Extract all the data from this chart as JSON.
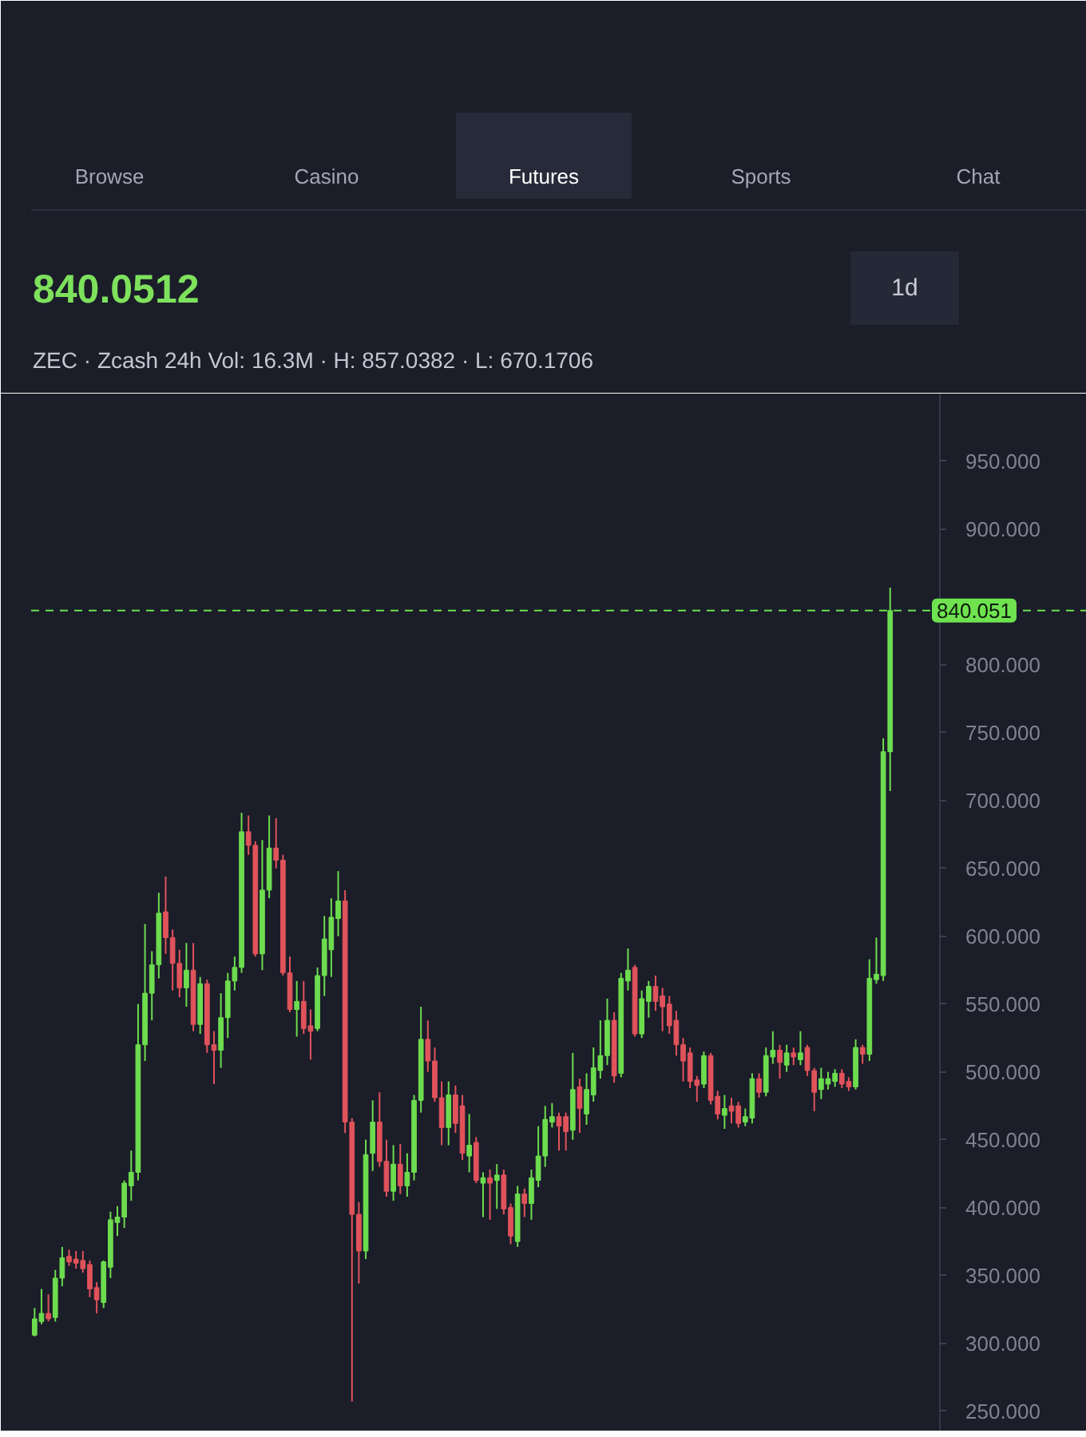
{
  "chart_data": {
    "type": "candlestick",
    "title": "840.0512",
    "subtitle": "ZEC · Zcash   24h Vol: 16.3M · H: 857.0382 · L: 670.1706",
    "annotations": [
      "Browse",
      "Casino",
      "Futures",
      "Sports",
      "Chat",
      "1d"
    ],
    "categories": [
      null,
      null,
      null,
      null,
      null,
      null,
      null,
      null,
      null,
      null,
      null,
      null,
      null,
      null,
      null,
      null,
      null,
      null,
      null,
      null,
      null,
      null,
      null,
      null,
      null,
      null,
      null,
      null,
      null,
      null,
      null,
      null,
      null,
      null,
      null,
      null,
      null,
      null,
      null,
      null,
      null,
      null,
      null,
      null,
      null,
      null,
      null,
      null,
      null,
      null,
      null,
      null,
      null,
      null,
      null,
      null,
      null,
      null,
      null,
      null,
      null,
      null,
      null,
      null,
      null,
      null,
      null,
      null,
      null,
      null,
      null,
      null,
      null,
      null,
      null,
      null,
      null,
      null,
      null,
      null,
      null,
      null,
      null,
      null,
      null,
      null,
      null,
      null,
      null,
      null,
      null,
      null,
      null,
      null,
      null,
      null,
      null,
      null,
      null,
      null,
      null,
      null,
      null,
      null,
      null,
      null,
      null,
      null,
      null,
      null,
      null,
      null,
      null,
      null,
      null,
      null,
      null,
      null,
      null,
      null,
      null,
      null,
      null,
      null,
      null,
      null,
      null,
      null,
      null,
      null,
      null,
      null,
      null,
      null,
      null,
      null,
      null,
      null,
      null,
      null,
      null,
      null,
      null,
      null,
      null,
      null,
      null,
      null,
      null,
      null,
      null,
      null,
      null
    ],
    "ohlc": [
      [
        306,
        326,
        305,
        318
      ],
      [
        316,
        340,
        314,
        322
      ],
      [
        322,
        336,
        316,
        318
      ],
      [
        319,
        354,
        316,
        348
      ],
      [
        348,
        371,
        342,
        363
      ],
      [
        364,
        369,
        357,
        360
      ],
      [
        362,
        368,
        355,
        359
      ],
      [
        361,
        368,
        352,
        355
      ],
      [
        358,
        361,
        334,
        340
      ],
      [
        341,
        345,
        322,
        332
      ],
      [
        330,
        361,
        326,
        360
      ],
      [
        356,
        397,
        348,
        391
      ],
      [
        389,
        401,
        379,
        393
      ],
      [
        393,
        420,
        385,
        418
      ],
      [
        416,
        442,
        405,
        426
      ],
      [
        426,
        550,
        420,
        520
      ],
      [
        520,
        609,
        508,
        558
      ],
      [
        558,
        589,
        538,
        579
      ],
      [
        579,
        632,
        569,
        617
      ],
      [
        618,
        644,
        587,
        599
      ],
      [
        599,
        605,
        560,
        580
      ],
      [
        580,
        590,
        555,
        562
      ],
      [
        562,
        595,
        548,
        575
      ],
      [
        575,
        595,
        530,
        535
      ],
      [
        535,
        570,
        528,
        565
      ],
      [
        565,
        568,
        514,
        520
      ],
      [
        520,
        530,
        491,
        516
      ],
      [
        516,
        558,
        503,
        540
      ],
      [
        540,
        573,
        525,
        567
      ],
      [
        567,
        585,
        560,
        577
      ],
      [
        577,
        691,
        573,
        677
      ],
      [
        677,
        689,
        660,
        667
      ],
      [
        667,
        670,
        585,
        587
      ],
      [
        587,
        671,
        575,
        634
      ],
      [
        634,
        689,
        628,
        665
      ],
      [
        665,
        687,
        650,
        656
      ],
      [
        656,
        660,
        571,
        573
      ],
      [
        573,
        585,
        544,
        546
      ],
      [
        546,
        567,
        526,
        552
      ],
      [
        552,
        567,
        528,
        532
      ],
      [
        534,
        546,
        509,
        530
      ],
      [
        532,
        577,
        530,
        571
      ],
      [
        571,
        615,
        556,
        598
      ],
      [
        590,
        628,
        570,
        614
      ],
      [
        613,
        648,
        600,
        626
      ],
      [
        626,
        634,
        455,
        463
      ],
      [
        463,
        466,
        257,
        395
      ],
      [
        395,
        404,
        344,
        368
      ],
      [
        368,
        450,
        362,
        439
      ],
      [
        440,
        479,
        427,
        463
      ],
      [
        463,
        485,
        430,
        434
      ],
      [
        434,
        450,
        408,
        412
      ],
      [
        412,
        446,
        405,
        432
      ],
      [
        432,
        447,
        410,
        416
      ],
      [
        416,
        440,
        408,
        426
      ],
      [
        426,
        483,
        420,
        479
      ],
      [
        479,
        548,
        470,
        524
      ],
      [
        524,
        538,
        500,
        508
      ],
      [
        508,
        518,
        478,
        481
      ],
      [
        481,
        493,
        446,
        459
      ],
      [
        459,
        493,
        446,
        483
      ],
      [
        483,
        490,
        455,
        462
      ],
      [
        475,
        483,
        435,
        440
      ],
      [
        438,
        469,
        426,
        446
      ],
      [
        448,
        452,
        418,
        420
      ],
      [
        418,
        426,
        393,
        422
      ],
      [
        422,
        428,
        391,
        418
      ],
      [
        420,
        432,
        399,
        424
      ],
      [
        424,
        428,
        395,
        399
      ],
      [
        400,
        403,
        373,
        379
      ],
      [
        375,
        416,
        371,
        410
      ],
      [
        410,
        414,
        393,
        403
      ],
      [
        403,
        428,
        391,
        422
      ],
      [
        420,
        460,
        415,
        438
      ],
      [
        438,
        475,
        430,
        465
      ],
      [
        463,
        477,
        459,
        467
      ],
      [
        467,
        470,
        442,
        460
      ],
      [
        467,
        470,
        442,
        456
      ],
      [
        457,
        514,
        450,
        487
      ],
      [
        489,
        495,
        455,
        473
      ],
      [
        469,
        499,
        461,
        487
      ],
      [
        483,
        518,
        478,
        503
      ],
      [
        501,
        538,
        495,
        512
      ],
      [
        512,
        554,
        505,
        538
      ],
      [
        538,
        544,
        492,
        497
      ],
      [
        499,
        573,
        496,
        569
      ],
      [
        567,
        591,
        560,
        575
      ],
      [
        577,
        579,
        526,
        528
      ],
      [
        528,
        560,
        525,
        554
      ],
      [
        552,
        567,
        540,
        563
      ],
      [
        563,
        571,
        545,
        552
      ],
      [
        556,
        562,
        530,
        548
      ],
      [
        550,
        556,
        528,
        534
      ],
      [
        538,
        545,
        512,
        520
      ],
      [
        520,
        525,
        493,
        508
      ],
      [
        514,
        518,
        488,
        493
      ],
      [
        494,
        497,
        478,
        490
      ],
      [
        491,
        515,
        488,
        512
      ],
      [
        512,
        514,
        476,
        479
      ],
      [
        482,
        486,
        465,
        469
      ],
      [
        468,
        483,
        458,
        473
      ],
      [
        475,
        481,
        462,
        471
      ],
      [
        475,
        478,
        459,
        462
      ],
      [
        463,
        473,
        460,
        467
      ],
      [
        466,
        499,
        462,
        495
      ],
      [
        495,
        499,
        481,
        485
      ],
      [
        485,
        518,
        482,
        512
      ],
      [
        511,
        530,
        506,
        516
      ],
      [
        516,
        520,
        495,
        507
      ],
      [
        505,
        520,
        500,
        514
      ],
      [
        514,
        518,
        505,
        511
      ],
      [
        509,
        530,
        505,
        514
      ],
      [
        518,
        520,
        497,
        501
      ],
      [
        501,
        503,
        471,
        485
      ],
      [
        487,
        503,
        480,
        495
      ],
      [
        491,
        500,
        487,
        495
      ],
      [
        493,
        502,
        489,
        499
      ],
      [
        499,
        502,
        488,
        491
      ],
      [
        493,
        496,
        486,
        489
      ],
      [
        489,
        524,
        487,
        518
      ],
      [
        518,
        520,
        506,
        513
      ],
      [
        513,
        583,
        508,
        569
      ],
      [
        568,
        599,
        565,
        572
      ],
      [
        571,
        746,
        567,
        736
      ],
      [
        736,
        857,
        707,
        840.051
      ],
      null,
      null,
      null,
      null,
      null,
      null,
      null,
      null,
      null,
      null,
      null,
      null,
      null,
      null,
      null,
      null,
      null,
      null,
      null,
      null,
      null,
      null,
      null,
      null,
      null,
      null,
      null,
      null
    ],
    "colors": [
      "#6ddc4f",
      "#6ddc4f",
      "#e0535b",
      "#6ddc4f",
      "#6ddc4f",
      "#e0535b",
      "#e0535b",
      "#e0535b",
      "#e0535b",
      "#e0535b",
      "#6ddc4f",
      "#6ddc4f",
      "#6ddc4f",
      "#6ddc4f",
      "#6ddc4f",
      "#6ddc4f",
      "#6ddc4f",
      "#6ddc4f",
      "#6ddc4f",
      "#e0535b",
      "#e0535b",
      "#e0535b",
      "#6ddc4f",
      "#e0535b",
      "#6ddc4f",
      "#e0535b",
      "#e0535b",
      "#6ddc4f",
      "#6ddc4f",
      "#6ddc4f",
      "#6ddc4f",
      "#e0535b",
      "#e0535b",
      "#6ddc4f",
      "#6ddc4f",
      "#e0535b",
      "#e0535b",
      "#e0535b",
      "#6ddc4f",
      "#e0535b",
      "#e0535b",
      "#6ddc4f",
      "#6ddc4f",
      "#6ddc4f",
      "#6ddc4f",
      "#e0535b",
      "#e0535b",
      "#e0535b",
      "#6ddc4f",
      "#6ddc4f",
      "#e0535b",
      "#e0535b",
      "#6ddc4f",
      "#e0535b",
      "#6ddc4f",
      "#6ddc4f",
      "#6ddc4f",
      "#e0535b",
      "#e0535b",
      "#e0535b",
      "#6ddc4f",
      "#e0535b",
      "#e0535b",
      "#6ddc4f",
      "#e0535b",
      "#6ddc4f",
      "#e0535b",
      "#6ddc4f",
      "#e0535b",
      "#e0535b",
      "#6ddc4f",
      "#e0535b",
      "#6ddc4f",
      "#6ddc4f",
      "#6ddc4f",
      "#6ddc4f",
      "#e0535b",
      "#e0535b",
      "#6ddc4f",
      "#e0535b",
      "#6ddc4f",
      "#6ddc4f",
      "#6ddc4f",
      "#6ddc4f",
      "#e0535b",
      "#6ddc4f",
      "#6ddc4f",
      "#e0535b",
      "#6ddc4f",
      "#6ddc4f",
      "#e0535b",
      "#e0535b",
      "#e0535b",
      "#e0535b",
      "#e0535b",
      "#e0535b",
      "#e0535b",
      "#6ddc4f",
      "#e0535b",
      "#e0535b",
      "#6ddc4f",
      "#e0535b",
      "#e0535b",
      "#6ddc4f",
      "#6ddc4f",
      "#e0535b",
      "#6ddc4f",
      "#6ddc4f",
      "#e0535b",
      "#6ddc4f",
      "#e0535b",
      "#6ddc4f",
      "#e0535b",
      "#e0535b",
      "#6ddc4f",
      "#6ddc4f",
      "#6ddc4f",
      "#e0535b",
      "#e0535b",
      "#6ddc4f",
      "#e0535b",
      "#6ddc4f",
      "#6ddc4f",
      "#6ddc4f",
      "#6ddc4f",
      null,
      null,
      null,
      null,
      null,
      null,
      null,
      null,
      null,
      null,
      null,
      null,
      null,
      null,
      null,
      null,
      null,
      null,
      null,
      null,
      null,
      null,
      null,
      null,
      null,
      null,
      null,
      null
    ],
    "ylim": [
      235,
      1000
    ],
    "yticks": [
      {
        "value": 250,
        "label": "250.000"
      },
      {
        "value": 300,
        "label": "300.000"
      },
      {
        "value": 350,
        "label": "350.000"
      },
      {
        "value": 400,
        "label": "400.000"
      },
      {
        "value": 450,
        "label": "450.000"
      },
      {
        "value": 500,
        "label": "500.000"
      },
      {
        "value": 550,
        "label": "550.000"
      },
      {
        "value": 600,
        "label": "600.000"
      },
      {
        "value": 650,
        "label": "650.000"
      },
      {
        "value": 700,
        "label": "700.000"
      },
      {
        "value": 750,
        "label": "750.000"
      },
      {
        "value": 800,
        "label": "800.000"
      },
      {
        "value": 900,
        "label": "900.000"
      },
      {
        "value": 950,
        "label": "950.000"
      }
    ],
    "ref_lines": [
      {
        "axis": "y",
        "value": 840.051,
        "label": "840.051",
        "color": "#6ee24f",
        "line_style": "dashed"
      }
    ],
    "tick_labels": "y"
  }
}
